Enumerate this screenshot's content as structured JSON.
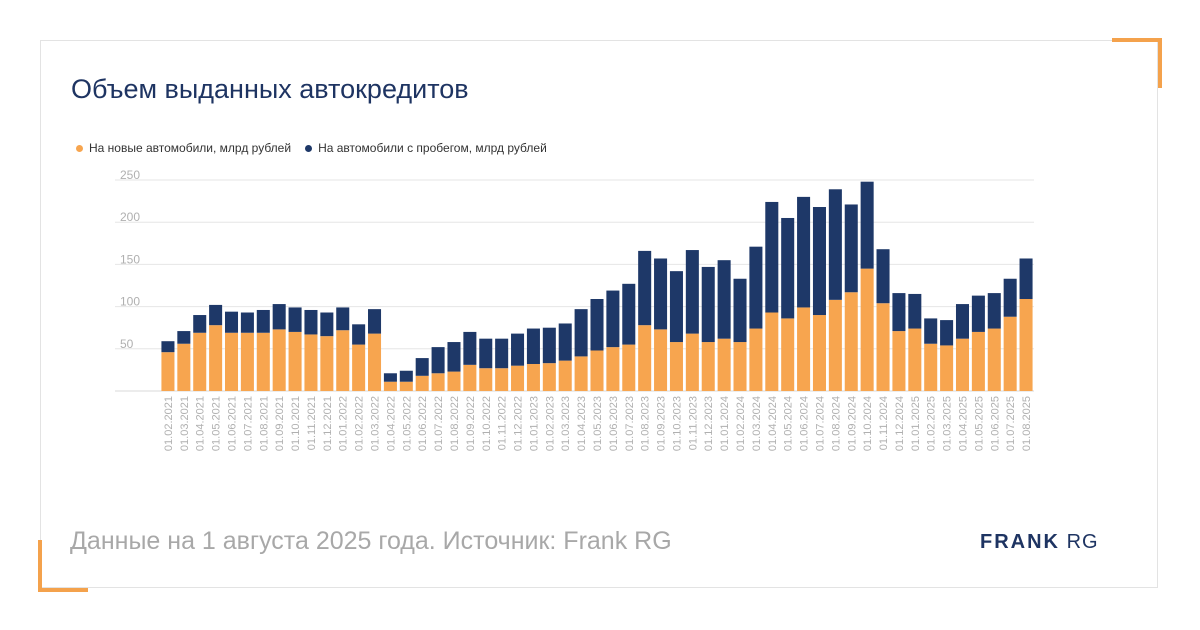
{
  "title": "Объем выданных автокредитов",
  "footer": "Данные на 1 августа 2025 года. Источник: Frank RG",
  "logo": {
    "bold": "FRANK",
    "light": "RG"
  },
  "colors": {
    "accent": "#f4a24c",
    "new_cars": "#f7a54f",
    "used_cars": "#1e3868",
    "grid": "#e6e6e6",
    "tick_text": "#b0b0b0"
  },
  "chart_data": {
    "type": "bar",
    "stacked": true,
    "ylim": [
      0,
      250
    ],
    "yticks": [
      50,
      100,
      150,
      200,
      250
    ],
    "grid": true,
    "legend_position": "top-left",
    "categories": [
      "01.02.2021",
      "01.03.2021",
      "01.04.2021",
      "01.05.2021",
      "01.06.2021",
      "01.07.2021",
      "01.08.2021",
      "01.09.2021",
      "01.10.2021",
      "01.11.2021",
      "01.12.2021",
      "01.01.2022",
      "01.02.2022",
      "01.03.2022",
      "01.04.2022",
      "01.05.2022",
      "01.06.2022",
      "01.07.2022",
      "01.08.2022",
      "01.09.2022",
      "01.10.2022",
      "01.11.2022",
      "01.12.2022",
      "01.01.2023",
      "01.02.2023",
      "01.03.2023",
      "01.04.2023",
      "01.05.2023",
      "01.06.2023",
      "01.07.2023",
      "01.08.2023",
      "01.09.2023",
      "01.10.2023",
      "01.11.2023",
      "01.12.2023",
      "01.01.2024",
      "01.02.2024",
      "01.03.2024",
      "01.04.2024",
      "01.05.2024",
      "01.06.2024",
      "01.07.2024",
      "01.08.2024",
      "01.09.2024",
      "01.10.2024",
      "01.11.2024",
      "01.12.2024",
      "01.01.2025",
      "01.02.2025",
      "01.03.2025",
      "01.04.2025",
      "01.05.2025",
      "01.06.2025",
      "01.07.2025",
      "01.08.2025"
    ],
    "series": [
      {
        "name": "На новые автомобили, млрд рублей",
        "values": [
          46,
          56,
          69,
          78,
          69,
          69,
          69,
          73,
          70,
          67,
          65,
          72,
          55,
          68,
          11,
          11,
          18,
          21,
          23,
          31,
          27,
          27,
          30,
          32,
          33,
          36,
          41,
          48,
          52,
          55,
          78,
          73,
          58,
          68,
          58,
          62,
          58,
          74,
          93,
          86,
          99,
          90,
          108,
          117,
          145,
          104,
          71,
          74,
          56,
          54,
          62,
          70,
          74,
          88,
          109
        ]
      },
      {
        "name": "На автомобили с пробегом, млрд рублей",
        "values": [
          13,
          15,
          21,
          24,
          25,
          24,
          27,
          30,
          29,
          29,
          28,
          27,
          24,
          29,
          10,
          13,
          21,
          31,
          35,
          39,
          35,
          35,
          38,
          42,
          42,
          44,
          56,
          61,
          67,
          72,
          88,
          84,
          84,
          99,
          89,
          93,
          75,
          97,
          131,
          119,
          131,
          128,
          131,
          104,
          103,
          64,
          45,
          41,
          30,
          30,
          41,
          43,
          42,
          45,
          48
        ]
      }
    ]
  }
}
